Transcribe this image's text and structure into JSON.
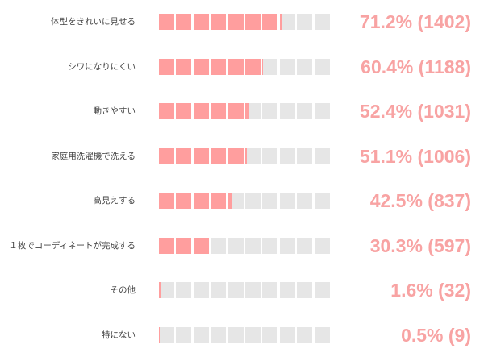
{
  "chart_data": {
    "type": "bar",
    "orientation": "horizontal",
    "segments_per_bar": 10,
    "colors": {
      "filled": "#ff9e9e",
      "empty": "#e6e6e6",
      "value_text": "#f8a3a3"
    },
    "rows": [
      {
        "category": "体型をきれいに見せる",
        "percent": 71.2,
        "count": 1402,
        "display": "71.2% (1402)"
      },
      {
        "category": "シワになりにくい",
        "percent": 60.4,
        "count": 1188,
        "display": "60.4% (1188)"
      },
      {
        "category": "動きやすい",
        "percent": 52.4,
        "count": 1031,
        "display": "52.4% (1031)"
      },
      {
        "category": "家庭用洗濯機で洗える",
        "percent": 51.1,
        "count": 1006,
        "display": "51.1% (1006)"
      },
      {
        "category": "高見えする",
        "percent": 42.5,
        "count": 837,
        "display": "42.5% (837)"
      },
      {
        "category": "１枚でコーディネートが完成する",
        "percent": 30.3,
        "count": 597,
        "display": "30.3% (597)"
      },
      {
        "category": "その他",
        "percent": 1.6,
        "count": 32,
        "display": "1.6% (32)"
      },
      {
        "category": "特にない",
        "percent": 0.5,
        "count": 9,
        "display": "0.5% (9)"
      }
    ]
  }
}
